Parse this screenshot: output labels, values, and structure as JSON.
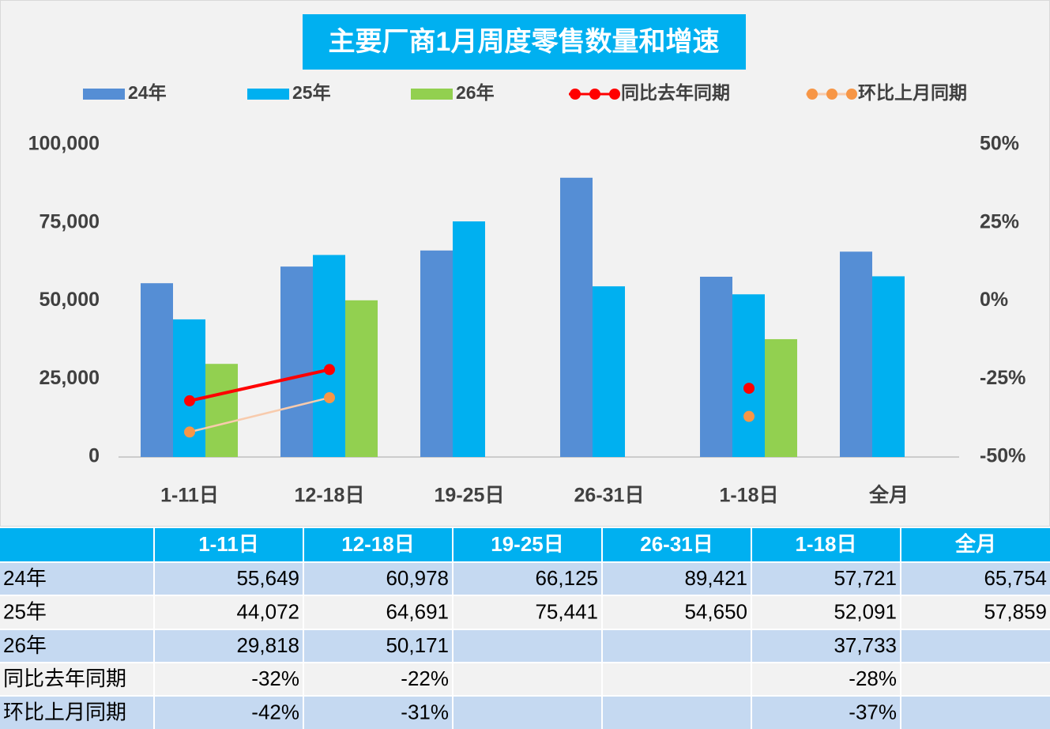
{
  "chart_data": {
    "type": "bar",
    "title": "主要厂商1月周度零售数量和增速",
    "categories": [
      "1-11日",
      "12-18日",
      "19-25日",
      "26-31日",
      "1-18日",
      "全月"
    ],
    "series": [
      {
        "name": "24年",
        "type": "bar",
        "color": "#558ed5",
        "values": [
          55649,
          60978,
          66125,
          89421,
          57721,
          65754
        ],
        "value_labels": [
          "55,649",
          "60,978",
          "66,125",
          "89,421",
          "57,721",
          "65,754"
        ]
      },
      {
        "name": "25年",
        "type": "bar",
        "color": "#00b0f0",
        "values": [
          44072,
          64691,
          75441,
          54650,
          52091,
          57859
        ],
        "value_labels": [
          "44,072",
          "64,691",
          "75,441",
          "54,650",
          "52,091",
          "57,859"
        ]
      },
      {
        "name": "26年",
        "type": "bar",
        "color": "#92d050",
        "values": [
          29818,
          50171,
          null,
          null,
          37733,
          null
        ],
        "value_labels": [
          "29,818",
          "50,171",
          null,
          null,
          "37,733",
          null
        ]
      },
      {
        "name": "同比去年同期",
        "type": "line",
        "axis": "y2",
        "color": "#ff0000",
        "marker_color": "#ff0000",
        "values": [
          -32,
          -22,
          null,
          null,
          -28,
          null
        ],
        "value_labels": [
          "-32%",
          "-22%",
          null,
          null,
          "-28%",
          null
        ]
      },
      {
        "name": "环比上月同期",
        "type": "line",
        "axis": "y2",
        "color": "#f8cbad",
        "marker_color": "#f79646",
        "values": [
          -42,
          -31,
          null,
          null,
          -37,
          null
        ],
        "value_labels": [
          "-42%",
          "-31%",
          null,
          null,
          "-37%",
          null
        ]
      }
    ],
    "ylim": [
      0,
      100000
    ],
    "yticks": [
      0,
      {
        "value": 25000,
        "label": "25,000"
      },
      {
        "value": 50000,
        "label": "50,000"
      },
      {
        "value": 75000,
        "label": "75,000"
      },
      {
        "value": 100000,
        "label": "100,000"
      }
    ],
    "y2lim": [
      -50,
      50
    ],
    "y2ticks": [
      {
        "value": -50,
        "label": "-50%"
      },
      {
        "value": -25,
        "label": "-25%"
      },
      {
        "value": 0,
        "label": "0%"
      },
      {
        "value": 25,
        "label": "25%"
      },
      {
        "value": 50,
        "label": "50%"
      }
    ]
  }
}
